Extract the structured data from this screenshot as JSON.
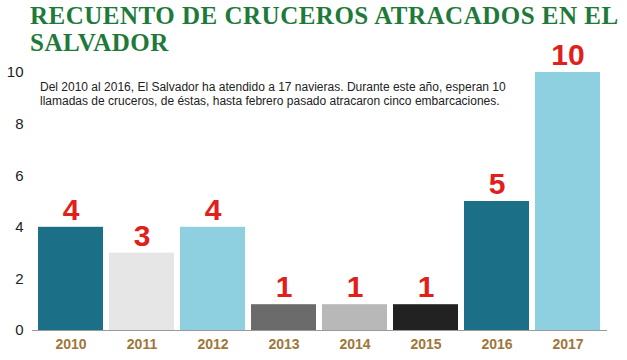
{
  "chart_data": {
    "type": "bar",
    "title": "RECUENTO DE CRUCEROS ATRACADOS EN EL SALVADOR",
    "subtitle": "Del 2010 al 2016, El Salvador ha atendido a 17 navieras. Durante este año, esperan 10 llamadas de cruceros, de éstas, hasta febrero pasado atracaron cinco embarcaciones.",
    "categories": [
      "2010",
      "2011",
      "2012",
      "2013",
      "2014",
      "2015",
      "2016",
      "2017"
    ],
    "values": [
      4,
      3,
      4,
      1,
      1,
      1,
      5,
      10
    ],
    "colors": [
      "#1b6f86",
      "#e6e6e6",
      "#8fd0e0",
      "#6b6b6b",
      "#b8b8b8",
      "#222222",
      "#1b6f86",
      "#8fd0e0"
    ],
    "ylim": [
      0,
      10
    ],
    "yticks": [
      0,
      2,
      4,
      6,
      8,
      10
    ],
    "data_labels": true
  }
}
